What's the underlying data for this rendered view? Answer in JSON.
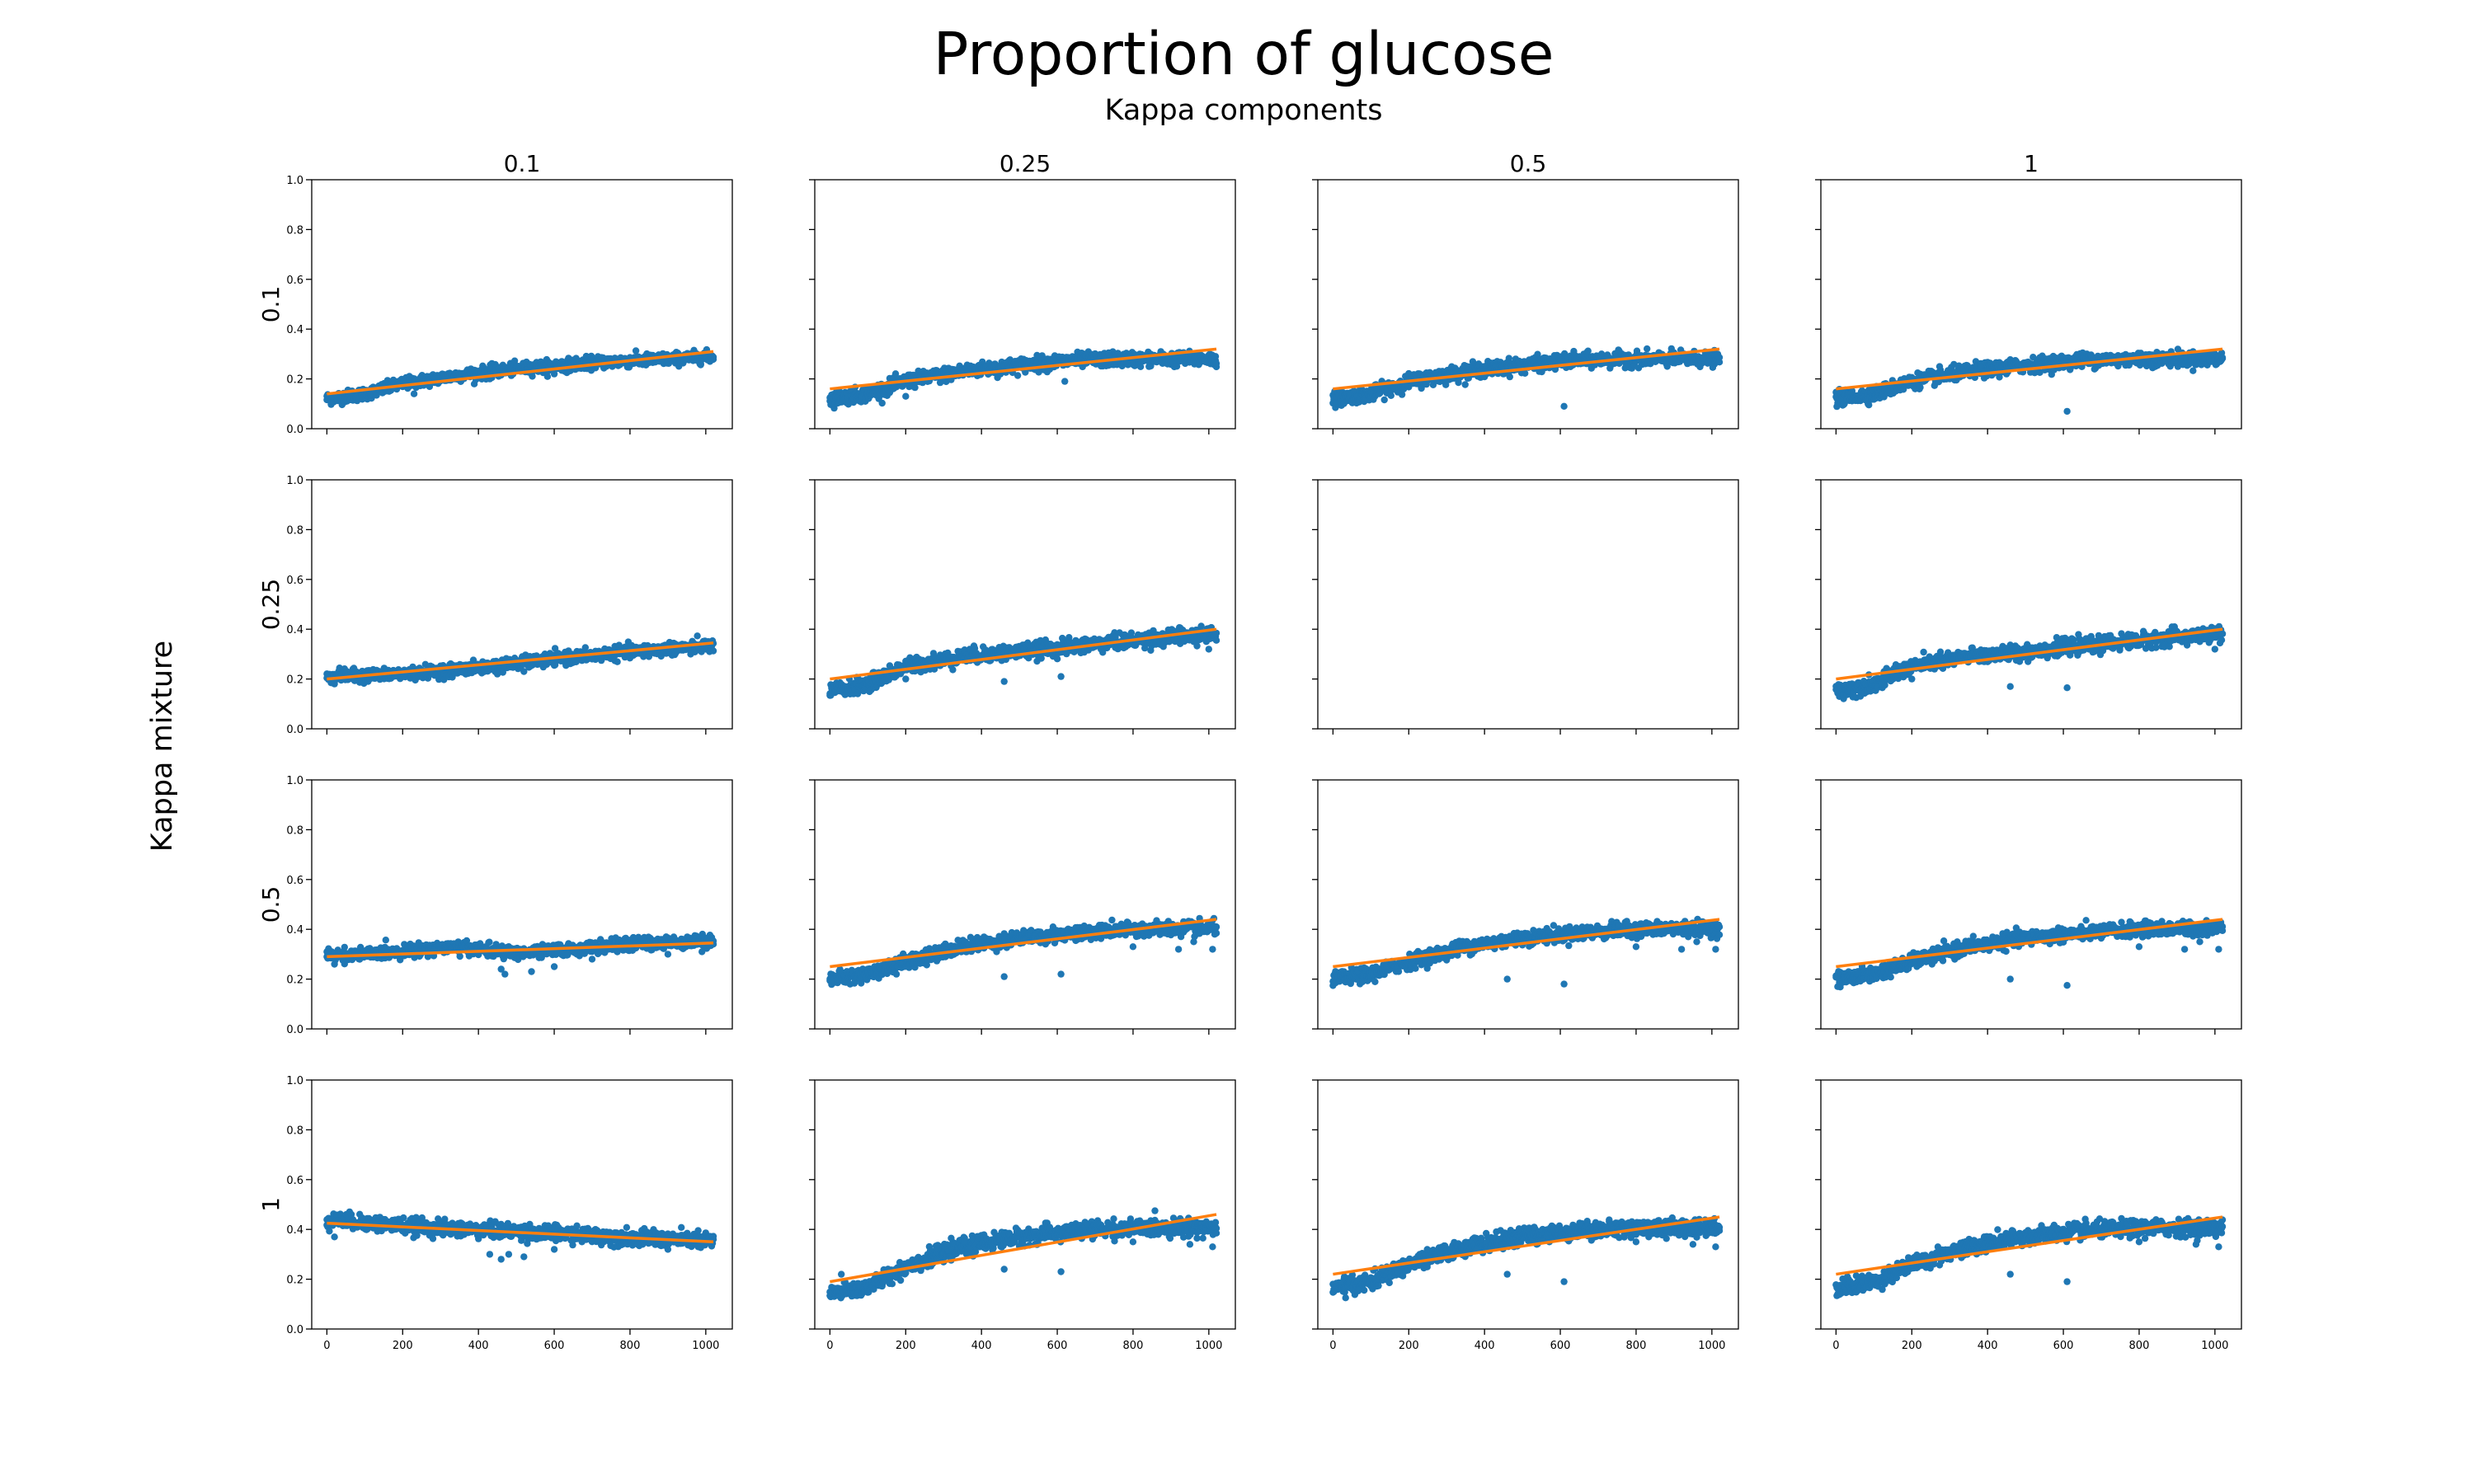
{
  "figure": {
    "title": "Proportion of glucose",
    "subtitle": "Kappa components",
    "row_axis_label": "Kappa mixture"
  },
  "colors": {
    "points": "#1f77b4",
    "fit": "#ff7f0e"
  },
  "chart_data": {
    "type": "scatter",
    "title": "Proportion of glucose",
    "subtitle": "Kappa components",
    "column_labels": [
      "0.1",
      "0.25",
      "0.5",
      "1"
    ],
    "row_labels": [
      "0.1",
      "0.25",
      "0.5",
      "1"
    ],
    "xlim": [
      -40,
      1070
    ],
    "ylim": [
      0,
      1
    ],
    "x_ticks": [
      0,
      200,
      400,
      600,
      800,
      1000
    ],
    "y_ticks": [
      0.0,
      0.2,
      0.4,
      0.6,
      0.8,
      1.0
    ],
    "x_tick_labels": [
      "0",
      "200",
      "400",
      "600",
      "800",
      "1000"
    ],
    "y_tick_labels": [
      "0.0",
      "0.2",
      "0.4",
      "0.6",
      "0.8",
      "1.0"
    ],
    "x_max": 1020,
    "series": [
      "points",
      "fit"
    ],
    "panels": [
      {
        "row": 0,
        "col": 0,
        "trend": [
          [
            0,
            0.12
          ],
          [
            100,
            0.14
          ],
          [
            200,
            0.18
          ],
          [
            350,
            0.215
          ],
          [
            500,
            0.24
          ],
          [
            700,
            0.265
          ],
          [
            900,
            0.28
          ],
          [
            1020,
            0.29
          ]
        ],
        "fit": [
          [
            0,
            0.14
          ],
          [
            1020,
            0.31
          ]
        ],
        "spread": 0.012,
        "outliers": [
          [
            230,
            0.14
          ],
          [
            430,
            0.2
          ],
          [
            600,
            0.22
          ]
        ]
      },
      {
        "row": 0,
        "col": 1,
        "trend": [
          [
            0,
            0.12
          ],
          [
            100,
            0.14
          ],
          [
            200,
            0.19
          ],
          [
            350,
            0.23
          ],
          [
            500,
            0.255
          ],
          [
            650,
            0.275
          ],
          [
            800,
            0.28
          ],
          [
            1020,
            0.28
          ]
        ],
        "fit": [
          [
            0,
            0.16
          ],
          [
            1020,
            0.32
          ]
        ],
        "spread": 0.014,
        "outliers": [
          [
            620,
            0.19
          ],
          [
            200,
            0.13
          ],
          [
            450,
            0.22
          ],
          [
            560,
            0.24
          ],
          [
            990,
            0.27
          ]
        ]
      },
      {
        "row": 0,
        "col": 2,
        "trend": [
          [
            0,
            0.12
          ],
          [
            100,
            0.14
          ],
          [
            200,
            0.19
          ],
          [
            350,
            0.23
          ],
          [
            500,
            0.255
          ],
          [
            650,
            0.275
          ],
          [
            800,
            0.28
          ],
          [
            1020,
            0.28
          ]
        ],
        "fit": [
          [
            0,
            0.16
          ],
          [
            1020,
            0.32
          ]
        ],
        "spread": 0.014,
        "outliers": [
          [
            610,
            0.09
          ],
          [
            450,
            0.22
          ],
          [
            300,
            0.2
          ],
          [
            990,
            0.27
          ]
        ]
      },
      {
        "row": 0,
        "col": 3,
        "trend": [
          [
            0,
            0.12
          ],
          [
            100,
            0.14
          ],
          [
            200,
            0.19
          ],
          [
            350,
            0.23
          ],
          [
            500,
            0.255
          ],
          [
            650,
            0.275
          ],
          [
            800,
            0.28
          ],
          [
            1020,
            0.28
          ]
        ],
        "fit": [
          [
            0,
            0.16
          ],
          [
            1020,
            0.32
          ]
        ],
        "spread": 0.014,
        "outliers": [
          [
            610,
            0.07
          ],
          [
            450,
            0.22
          ],
          [
            300,
            0.2
          ],
          [
            990,
            0.27
          ]
        ]
      },
      {
        "row": 1,
        "col": 0,
        "trend": [
          [
            0,
            0.21
          ],
          [
            200,
            0.22
          ],
          [
            400,
            0.245
          ],
          [
            600,
            0.28
          ],
          [
            800,
            0.31
          ],
          [
            1020,
            0.335
          ]
        ],
        "fit": [
          [
            0,
            0.2
          ],
          [
            1020,
            0.345
          ]
        ],
        "spread": 0.012,
        "outliers": [
          [
            20,
            0.18
          ],
          [
            450,
            0.22
          ],
          [
            520,
            0.23
          ],
          [
            700,
            0.28
          ],
          [
            850,
            0.29
          ],
          [
            960,
            0.3
          ],
          [
            1010,
            0.31
          ]
        ]
      },
      {
        "row": 1,
        "col": 1,
        "trend": [
          [
            0,
            0.15
          ],
          [
            100,
            0.18
          ],
          [
            200,
            0.25
          ],
          [
            350,
            0.29
          ],
          [
            500,
            0.31
          ],
          [
            700,
            0.34
          ],
          [
            900,
            0.37
          ],
          [
            1020,
            0.38
          ]
        ],
        "fit": [
          [
            0,
            0.2
          ],
          [
            1020,
            0.4
          ]
        ],
        "spread": 0.015,
        "outliers": [
          [
            460,
            0.19
          ],
          [
            610,
            0.21
          ],
          [
            200,
            0.2
          ],
          [
            880,
            0.33
          ],
          [
            960,
            0.35
          ],
          [
            1000,
            0.32
          ]
        ]
      },
      {
        "row": 1,
        "col": 2,
        "empty": true
      },
      {
        "row": 1,
        "col": 3,
        "trend": [
          [
            0,
            0.15
          ],
          [
            100,
            0.18
          ],
          [
            200,
            0.25
          ],
          [
            350,
            0.29
          ],
          [
            500,
            0.31
          ],
          [
            700,
            0.34
          ],
          [
            900,
            0.37
          ],
          [
            1020,
            0.38
          ]
        ],
        "fit": [
          [
            0,
            0.2
          ],
          [
            1020,
            0.4
          ]
        ],
        "spread": 0.015,
        "outliers": [
          [
            460,
            0.17
          ],
          [
            610,
            0.165
          ],
          [
            200,
            0.2
          ],
          [
            880,
            0.33
          ],
          [
            960,
            0.35
          ],
          [
            1000,
            0.32
          ]
        ]
      },
      {
        "row": 2,
        "col": 0,
        "trend": [
          [
            0,
            0.295
          ],
          [
            100,
            0.3
          ],
          [
            200,
            0.31
          ],
          [
            300,
            0.33
          ],
          [
            400,
            0.32
          ],
          [
            500,
            0.305
          ],
          [
            650,
            0.32
          ],
          [
            800,
            0.34
          ],
          [
            1020,
            0.355
          ]
        ],
        "fit": [
          [
            0,
            0.29
          ],
          [
            1020,
            0.345
          ]
        ],
        "spread": 0.012,
        "outliers": [
          [
            20,
            0.26
          ],
          [
            460,
            0.24
          ],
          [
            470,
            0.22
          ],
          [
            540,
            0.23
          ],
          [
            600,
            0.25
          ],
          [
            700,
            0.28
          ],
          [
            900,
            0.3
          ],
          [
            990,
            0.31
          ]
        ]
      },
      {
        "row": 2,
        "col": 1,
        "trend": [
          [
            0,
            0.2
          ],
          [
            100,
            0.22
          ],
          [
            200,
            0.27
          ],
          [
            350,
            0.33
          ],
          [
            500,
            0.365
          ],
          [
            650,
            0.385
          ],
          [
            800,
            0.4
          ],
          [
            1020,
            0.405
          ]
        ],
        "fit": [
          [
            0,
            0.25
          ],
          [
            1020,
            0.44
          ]
        ],
        "spread": 0.014,
        "outliers": [
          [
            460,
            0.21
          ],
          [
            610,
            0.22
          ],
          [
            800,
            0.33
          ],
          [
            920,
            0.32
          ],
          [
            1010,
            0.32
          ],
          [
            960,
            0.35
          ]
        ]
      },
      {
        "row": 2,
        "col": 2,
        "trend": [
          [
            0,
            0.2
          ],
          [
            100,
            0.22
          ],
          [
            200,
            0.27
          ],
          [
            350,
            0.33
          ],
          [
            500,
            0.365
          ],
          [
            650,
            0.385
          ],
          [
            800,
            0.4
          ],
          [
            1020,
            0.405
          ]
        ],
        "fit": [
          [
            0,
            0.25
          ],
          [
            1020,
            0.44
          ]
        ],
        "spread": 0.014,
        "outliers": [
          [
            460,
            0.2
          ],
          [
            610,
            0.18
          ],
          [
            800,
            0.33
          ],
          [
            920,
            0.32
          ],
          [
            1010,
            0.32
          ],
          [
            960,
            0.35
          ]
        ]
      },
      {
        "row": 2,
        "col": 3,
        "trend": [
          [
            0,
            0.2
          ],
          [
            100,
            0.22
          ],
          [
            200,
            0.27
          ],
          [
            350,
            0.33
          ],
          [
            500,
            0.365
          ],
          [
            650,
            0.385
          ],
          [
            800,
            0.4
          ],
          [
            1020,
            0.405
          ]
        ],
        "fit": [
          [
            0,
            0.25
          ],
          [
            1020,
            0.44
          ]
        ],
        "spread": 0.014,
        "outliers": [
          [
            460,
            0.2
          ],
          [
            610,
            0.175
          ],
          [
            800,
            0.33
          ],
          [
            920,
            0.32
          ],
          [
            1010,
            0.32
          ],
          [
            960,
            0.35
          ]
        ]
      },
      {
        "row": 3,
        "col": 0,
        "trend": [
          [
            0,
            0.44
          ],
          [
            150,
            0.42
          ],
          [
            300,
            0.405
          ],
          [
            450,
            0.395
          ],
          [
            600,
            0.385
          ],
          [
            750,
            0.37
          ],
          [
            900,
            0.36
          ],
          [
            1020,
            0.355
          ]
        ],
        "fit": [
          [
            0,
            0.425
          ],
          [
            1020,
            0.35
          ]
        ],
        "spread": 0.015,
        "outliers": [
          [
            20,
            0.37
          ],
          [
            430,
            0.3
          ],
          [
            460,
            0.28
          ],
          [
            480,
            0.3
          ],
          [
            520,
            0.29
          ],
          [
            600,
            0.32
          ],
          [
            820,
            0.34
          ],
          [
            900,
            0.32
          ],
          [
            980,
            0.33
          ]
        ]
      },
      {
        "row": 3,
        "col": 1,
        "trend": [
          [
            0,
            0.14
          ],
          [
            100,
            0.17
          ],
          [
            200,
            0.25
          ],
          [
            350,
            0.33
          ],
          [
            500,
            0.37
          ],
          [
            650,
            0.395
          ],
          [
            800,
            0.405
          ],
          [
            1020,
            0.41
          ]
        ],
        "fit": [
          [
            0,
            0.19
          ],
          [
            1020,
            0.46
          ]
        ],
        "spread": 0.016,
        "outliers": [
          [
            30,
            0.22
          ],
          [
            460,
            0.24
          ],
          [
            610,
            0.23
          ],
          [
            800,
            0.35
          ],
          [
            950,
            0.34
          ],
          [
            1010,
            0.33
          ]
        ]
      },
      {
        "row": 3,
        "col": 2,
        "trend": [
          [
            0,
            0.16
          ],
          [
            100,
            0.19
          ],
          [
            200,
            0.26
          ],
          [
            350,
            0.33
          ],
          [
            500,
            0.37
          ],
          [
            650,
            0.395
          ],
          [
            800,
            0.405
          ],
          [
            1020,
            0.41
          ]
        ],
        "fit": [
          [
            0,
            0.22
          ],
          [
            1020,
            0.45
          ]
        ],
        "spread": 0.016,
        "outliers": [
          [
            30,
            0.21
          ],
          [
            460,
            0.22
          ],
          [
            610,
            0.19
          ],
          [
            800,
            0.35
          ],
          [
            950,
            0.34
          ],
          [
            1010,
            0.33
          ]
        ]
      },
      {
        "row": 3,
        "col": 3,
        "trend": [
          [
            0,
            0.16
          ],
          [
            100,
            0.19
          ],
          [
            200,
            0.26
          ],
          [
            350,
            0.33
          ],
          [
            500,
            0.37
          ],
          [
            650,
            0.395
          ],
          [
            800,
            0.405
          ],
          [
            1020,
            0.41
          ]
        ],
        "fit": [
          [
            0,
            0.22
          ],
          [
            1020,
            0.45
          ]
        ],
        "spread": 0.016,
        "outliers": [
          [
            30,
            0.21
          ],
          [
            460,
            0.22
          ],
          [
            610,
            0.19
          ],
          [
            800,
            0.35
          ],
          [
            950,
            0.34
          ],
          [
            1010,
            0.33
          ]
        ]
      }
    ]
  }
}
